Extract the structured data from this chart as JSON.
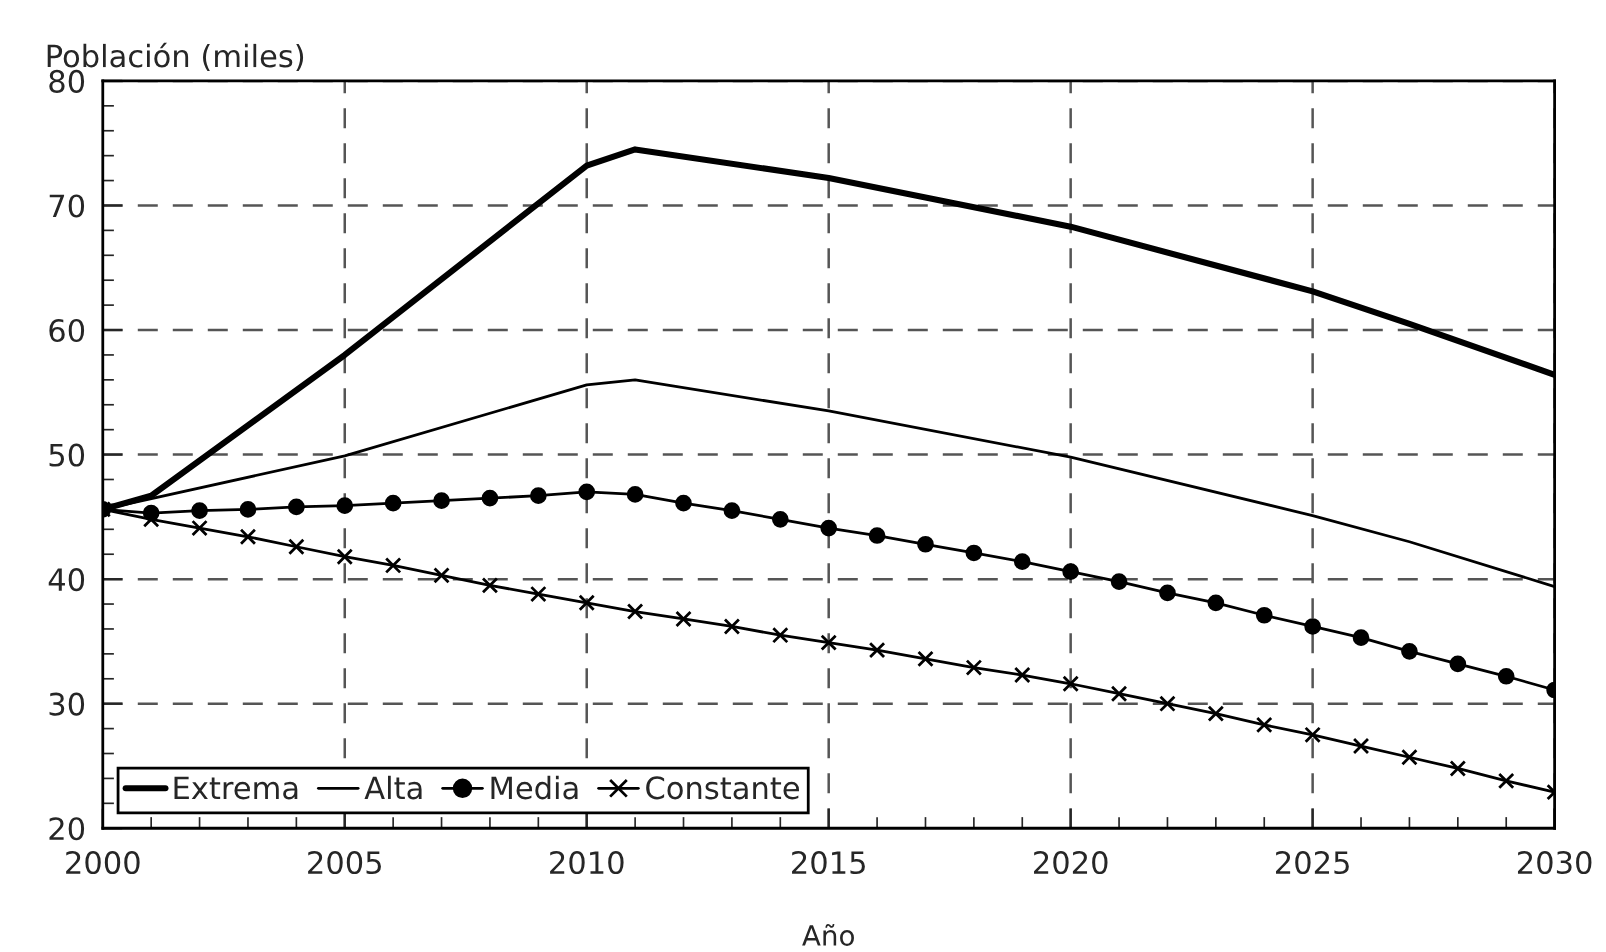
{
  "chart_data": {
    "type": "line",
    "ylabel": "Población (miles)",
    "xlabel": "Año",
    "xlim": [
      2000,
      2030
    ],
    "xticks": [
      2000,
      2005,
      2010,
      2015,
      2020,
      2025,
      2030
    ],
    "ylim": [
      20,
      80
    ],
    "yticks": [
      20,
      30,
      40,
      50,
      60,
      70,
      80
    ],
    "grid": true,
    "legend": "bottom left",
    "series": [
      {
        "name": "Extrema",
        "color": "#000000",
        "marker": "none",
        "x": [
          2000,
          2001,
          2005,
          2010,
          2011,
          2015,
          2020,
          2025,
          2027,
          2030
        ],
        "values": [
          45.6,
          46.7,
          58.0,
          73.2,
          74.5,
          72.2,
          68.3,
          63.1,
          60.5,
          56.4
        ]
      },
      {
        "name": "Alta",
        "color": "#000000",
        "marker": "none",
        "x": [
          2000,
          2005,
          2010,
          2011,
          2015,
          2020,
          2025,
          2027,
          2030
        ],
        "values": [
          45.6,
          49.9,
          55.6,
          56.0,
          53.5,
          49.8,
          45.1,
          43.0,
          39.4
        ]
      },
      {
        "name": "Media",
        "color": "#000000",
        "marker": "circle",
        "x": [
          2000,
          2001,
          2002,
          2003,
          2004,
          2005,
          2006,
          2007,
          2008,
          2009,
          2010,
          2011,
          2012,
          2013,
          2014,
          2015,
          2016,
          2017,
          2018,
          2019,
          2020,
          2021,
          2022,
          2023,
          2024,
          2025,
          2026,
          2027,
          2028,
          2029,
          2030
        ],
        "values": [
          45.6,
          45.3,
          45.5,
          45.6,
          45.8,
          45.9,
          46.1,
          46.3,
          46.5,
          46.7,
          47.0,
          46.8,
          46.1,
          45.5,
          44.8,
          44.1,
          43.5,
          42.8,
          42.1,
          41.4,
          40.6,
          39.8,
          38.9,
          38.1,
          37.1,
          36.2,
          35.3,
          34.2,
          33.2,
          32.2,
          31.1
        ]
      },
      {
        "name": "Constante",
        "color": "#000000",
        "marker": "cross",
        "x": [
          2000,
          2001,
          2002,
          2003,
          2004,
          2005,
          2006,
          2007,
          2008,
          2009,
          2010,
          2011,
          2012,
          2013,
          2014,
          2015,
          2016,
          2017,
          2018,
          2019,
          2020,
          2021,
          2022,
          2023,
          2024,
          2025,
          2026,
          2027,
          2028,
          2029,
          2030
        ],
        "values": [
          45.6,
          44.8,
          44.1,
          43.4,
          42.6,
          41.8,
          41.1,
          40.3,
          39.5,
          38.8,
          38.1,
          37.4,
          36.8,
          36.2,
          35.5,
          34.9,
          34.3,
          33.6,
          32.9,
          32.3,
          31.6,
          30.8,
          30.0,
          29.2,
          28.3,
          27.5,
          26.6,
          25.7,
          24.8,
          23.8,
          22.9
        ]
      }
    ]
  }
}
